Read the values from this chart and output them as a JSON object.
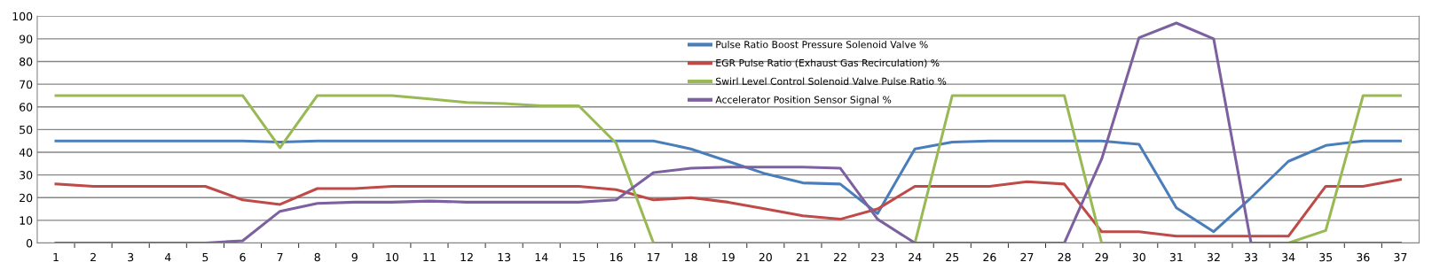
{
  "chart_data": {
    "type": "line",
    "categories": [
      "1",
      "2",
      "3",
      "4",
      "5",
      "6",
      "7",
      "8",
      "9",
      "10",
      "11",
      "12",
      "13",
      "14",
      "15",
      "16",
      "17",
      "18",
      "19",
      "20",
      "21",
      "22",
      "23",
      "24",
      "25",
      "26",
      "27",
      "28",
      "29",
      "30",
      "31",
      "32",
      "33",
      "34",
      "35",
      "36",
      "37"
    ],
    "series": [
      {
        "name": "Pulse Ratio Boost Pressure Solenoid Valve %",
        "color": "#4a7ebb",
        "values": [
          45,
          45,
          45,
          45,
          45,
          45,
          44.5,
          45,
          45,
          45,
          45,
          45,
          45,
          45,
          45,
          45,
          45,
          41.5,
          36,
          30.5,
          26.5,
          26,
          13,
          41.5,
          44.5,
          45,
          45,
          45,
          45,
          43.5,
          15.5,
          5,
          20,
          36,
          43,
          45,
          45
        ]
      },
      {
        "name": "EGR Pulse Ratio (Exhaust Gas Recirculation) %",
        "color": "#be4b48",
        "values": [
          26,
          25,
          25,
          25,
          25,
          19,
          17,
          24,
          24,
          25,
          25,
          25,
          25,
          25,
          25,
          23.5,
          19,
          20,
          18,
          15,
          12,
          10.5,
          15,
          25,
          25,
          25,
          27,
          26,
          5,
          5,
          3,
          3,
          3,
          3,
          25,
          25,
          28
        ]
      },
      {
        "name": "Swirl Level Control Solenoid Valve Pulse Ratio %",
        "color": "#98b954",
        "values": [
          65,
          65,
          65,
          65,
          65,
          65,
          42,
          65,
          65,
          65,
          63.5,
          62,
          61.5,
          60.5,
          60.5,
          44,
          0,
          0,
          0,
          0,
          0,
          0,
          0,
          0,
          65,
          65,
          65,
          65,
          0,
          0,
          0,
          0,
          0,
          0,
          5.5,
          65,
          65
        ]
      },
      {
        "name": "Accelerator Position Sensor Signal %",
        "color": "#7d60a0",
        "values": [
          0,
          0,
          0,
          0,
          0,
          1,
          14,
          17.5,
          18,
          18,
          18.5,
          18,
          18,
          18,
          18,
          19,
          31,
          33,
          33.5,
          33.5,
          33.5,
          33,
          10.5,
          0,
          0,
          0,
          0,
          0,
          37,
          90.5,
          97,
          90,
          0,
          0,
          0,
          0,
          0
        ]
      }
    ],
    "ylim": [
      0,
      100
    ],
    "yticks": [
      0,
      10,
      20,
      30,
      40,
      50,
      60,
      70,
      80,
      90,
      100
    ],
    "grid": "y",
    "legend": "top",
    "marker": "none",
    "line_style": "solid"
  }
}
